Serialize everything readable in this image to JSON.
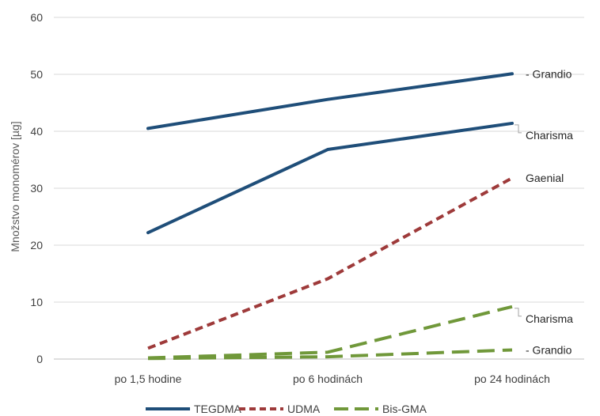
{
  "chart_data": {
    "type": "line",
    "title": "",
    "xlabel": "",
    "ylabel": "Množstvo monomérov [µg]",
    "categories": [
      "po 1,5 hodine",
      "po 6 hodinách",
      "po 24 hodinách"
    ],
    "ylim": [
      0,
      60
    ],
    "yticks": [
      0,
      10,
      20,
      30,
      40,
      50,
      60
    ],
    "grid": "horizontal",
    "legend_position": "bottom",
    "legend": [
      {
        "name": "TEGDMA",
        "color": "#1f4e79",
        "dash": "solid"
      },
      {
        "name": "UDMA",
        "color": "#9e3a3a",
        "dash": "dotted"
      },
      {
        "name": "Bis-GMA",
        "color": "#70983a",
        "dash": "dashed"
      }
    ],
    "series": [
      {
        "group": "TEGDMA",
        "label": "- Grandio",
        "values": [
          40.5,
          45.6,
          50.1
        ]
      },
      {
        "group": "TEGDMA",
        "label": "Charisma",
        "values": [
          22.2,
          36.8,
          41.4
        ]
      },
      {
        "group": "UDMA",
        "label": "Gaenial",
        "values": [
          1.9,
          14.1,
          31.8
        ]
      },
      {
        "group": "Bis-GMA",
        "label": "Charisma",
        "values": [
          0.2,
          1.2,
          9.2
        ]
      },
      {
        "group": "Bis-GMA",
        "label": "- Grandio",
        "values": [
          0.1,
          0.4,
          1.6
        ]
      }
    ]
  }
}
